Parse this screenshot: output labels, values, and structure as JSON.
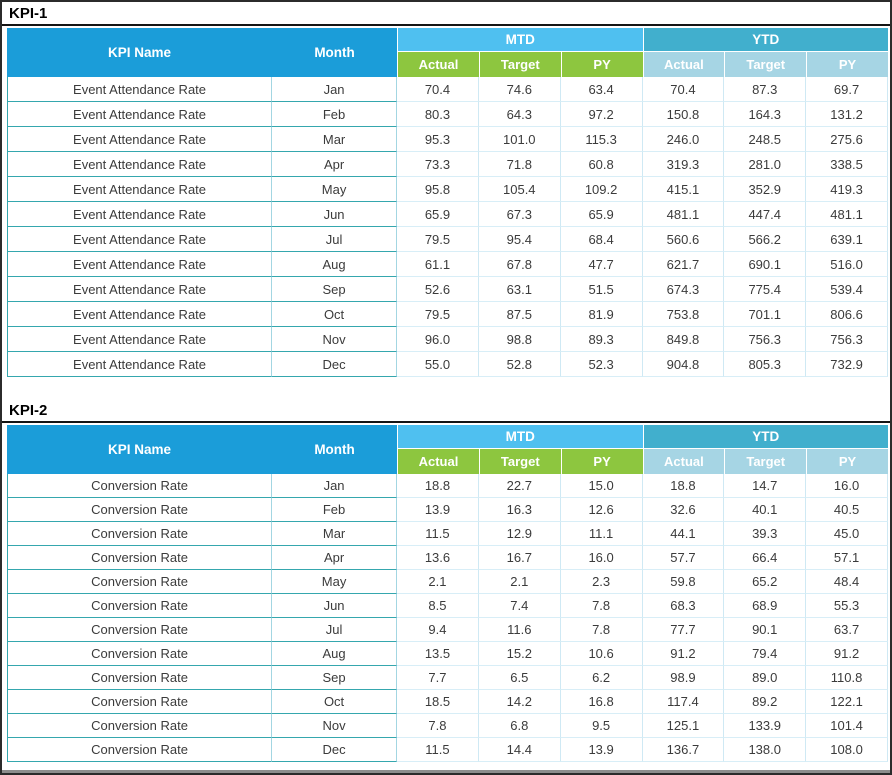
{
  "colors": {
    "header_main": "#1b9dd9",
    "band_mtd": "#4fc0f0",
    "band_ytd": "#41afcd",
    "sub_mtd_green": "#8dc63f",
    "sub_ytd_blue": "#a6d5e4",
    "border_teal": "#35a7ae",
    "border_light_blue": "#a3d6e2",
    "border_num_area": "#cfe9f4",
    "data_text": "#3b3b3b"
  },
  "tables": [
    {
      "title": "KPI-1",
      "kpi_name": "Event Attendance Rate",
      "headers": {
        "kpi_name": "KPI Name",
        "month": "Month",
        "mtd": "MTD",
        "ytd": "YTD",
        "actual": "Actual",
        "target": "Target",
        "py": "PY"
      },
      "rows": [
        {
          "month": "Jan",
          "mtd": [
            "70.4",
            "74.6",
            "63.4"
          ],
          "ytd": [
            "70.4",
            "87.3",
            "69.7"
          ]
        },
        {
          "month": "Feb",
          "mtd": [
            "80.3",
            "64.3",
            "97.2"
          ],
          "ytd": [
            "150.8",
            "164.3",
            "131.2"
          ]
        },
        {
          "month": "Mar",
          "mtd": [
            "95.3",
            "101.0",
            "115.3"
          ],
          "ytd": [
            "246.0",
            "248.5",
            "275.6"
          ]
        },
        {
          "month": "Apr",
          "mtd": [
            "73.3",
            "71.8",
            "60.8"
          ],
          "ytd": [
            "319.3",
            "281.0",
            "338.5"
          ]
        },
        {
          "month": "May",
          "mtd": [
            "95.8",
            "105.4",
            "109.2"
          ],
          "ytd": [
            "415.1",
            "352.9",
            "419.3"
          ]
        },
        {
          "month": "Jun",
          "mtd": [
            "65.9",
            "67.3",
            "65.9"
          ],
          "ytd": [
            "481.1",
            "447.4",
            "481.1"
          ]
        },
        {
          "month": "Jul",
          "mtd": [
            "79.5",
            "95.4",
            "68.4"
          ],
          "ytd": [
            "560.6",
            "566.2",
            "639.1"
          ]
        },
        {
          "month": "Aug",
          "mtd": [
            "61.1",
            "67.8",
            "47.7"
          ],
          "ytd": [
            "621.7",
            "690.1",
            "516.0"
          ]
        },
        {
          "month": "Sep",
          "mtd": [
            "52.6",
            "63.1",
            "51.5"
          ],
          "ytd": [
            "674.3",
            "775.4",
            "539.4"
          ]
        },
        {
          "month": "Oct",
          "mtd": [
            "79.5",
            "87.5",
            "81.9"
          ],
          "ytd": [
            "753.8",
            "701.1",
            "806.6"
          ]
        },
        {
          "month": "Nov",
          "mtd": [
            "96.0",
            "98.8",
            "89.3"
          ],
          "ytd": [
            "849.8",
            "756.3",
            "756.3"
          ]
        },
        {
          "month": "Dec",
          "mtd": [
            "55.0",
            "52.8",
            "52.3"
          ],
          "ytd": [
            "904.8",
            "805.3",
            "732.9"
          ]
        }
      ]
    },
    {
      "title": "KPI-2",
      "kpi_name": "Conversion Rate",
      "headers": {
        "kpi_name": "KPI Name",
        "month": "Month",
        "mtd": "MTD",
        "ytd": "YTD",
        "actual": "Actual",
        "target": "Target",
        "py": "PY"
      },
      "rows": [
        {
          "month": "Jan",
          "mtd": [
            "18.8",
            "22.7",
            "15.0"
          ],
          "ytd": [
            "18.8",
            "14.7",
            "16.0"
          ]
        },
        {
          "month": "Feb",
          "mtd": [
            "13.9",
            "16.3",
            "12.6"
          ],
          "ytd": [
            "32.6",
            "40.1",
            "40.5"
          ]
        },
        {
          "month": "Mar",
          "mtd": [
            "11.5",
            "12.9",
            "11.1"
          ],
          "ytd": [
            "44.1",
            "39.3",
            "45.0"
          ]
        },
        {
          "month": "Apr",
          "mtd": [
            "13.6",
            "16.7",
            "16.0"
          ],
          "ytd": [
            "57.7",
            "66.4",
            "57.1"
          ]
        },
        {
          "month": "May",
          "mtd": [
            "2.1",
            "2.1",
            "2.3"
          ],
          "ytd": [
            "59.8",
            "65.2",
            "48.4"
          ]
        },
        {
          "month": "Jun",
          "mtd": [
            "8.5",
            "7.4",
            "7.8"
          ],
          "ytd": [
            "68.3",
            "68.9",
            "55.3"
          ]
        },
        {
          "month": "Jul",
          "mtd": [
            "9.4",
            "11.6",
            "7.8"
          ],
          "ytd": [
            "77.7",
            "90.1",
            "63.7"
          ]
        },
        {
          "month": "Aug",
          "mtd": [
            "13.5",
            "15.2",
            "10.6"
          ],
          "ytd": [
            "91.2",
            "79.4",
            "91.2"
          ]
        },
        {
          "month": "Sep",
          "mtd": [
            "7.7",
            "6.5",
            "6.2"
          ],
          "ytd": [
            "98.9",
            "89.0",
            "110.8"
          ]
        },
        {
          "month": "Oct",
          "mtd": [
            "18.5",
            "14.2",
            "16.8"
          ],
          "ytd": [
            "117.4",
            "89.2",
            "122.1"
          ]
        },
        {
          "month": "Nov",
          "mtd": [
            "7.8",
            "6.8",
            "9.5"
          ],
          "ytd": [
            "125.1",
            "133.9",
            "101.4"
          ]
        },
        {
          "month": "Dec",
          "mtd": [
            "11.5",
            "14.4",
            "13.9"
          ],
          "ytd": [
            "136.7",
            "138.0",
            "108.0"
          ]
        }
      ]
    }
  ]
}
